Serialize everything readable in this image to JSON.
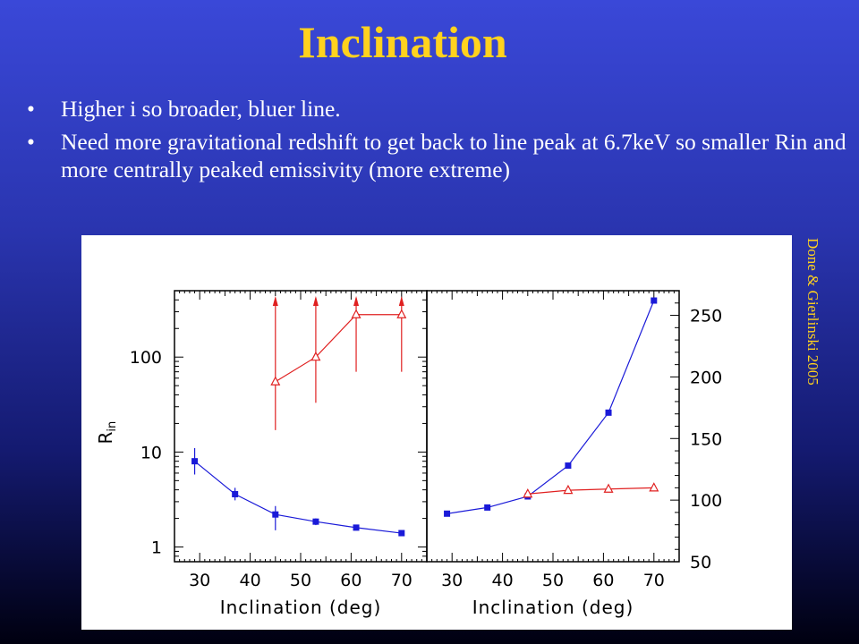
{
  "slide": {
    "title": "Inclination",
    "bullets": [
      "Higher i so broader, bluer line.",
      "Need more gravitational redshift to get back to line peak at 6.7keV so smaller Rin and more centrally peaked emissivity (more extreme)"
    ],
    "credit": "Done & Gierlinski 2005"
  },
  "chart_data": [
    {
      "type": "scatter",
      "panel": "left",
      "xlabel": "Inclination (deg)",
      "ylabel": "R",
      "ylabel_sub": "in",
      "yscale": "log",
      "xlim": [
        25,
        75
      ],
      "ylim": [
        0.7,
        500
      ],
      "x_ticks": [
        30,
        40,
        50,
        60,
        70
      ],
      "y_ticks": [
        {
          "value": 1,
          "label": "1"
        },
        {
          "value": 10,
          "label": "10"
        },
        {
          "value": 100,
          "label": "100"
        }
      ],
      "series": [
        {
          "color": "#1a1ad8",
          "marker": "square",
          "x": [
            29,
            37,
            45,
            53,
            61,
            70
          ],
          "y": [
            8,
            3.6,
            2.2,
            1.85,
            1.6,
            1.4
          ],
          "err_low": [
            5.8,
            3.1,
            1.5,
            1.7,
            1.6,
            1.4
          ],
          "err_high": [
            11,
            4.2,
            2.7,
            2.0,
            1.6,
            1.4
          ]
        },
        {
          "color": "#e02020",
          "marker": "triangle",
          "x": [
            45,
            53,
            61,
            70
          ],
          "y": [
            55,
            100,
            280,
            280
          ],
          "err_low": [
            17,
            33,
            70,
            70
          ],
          "arrow_up": [
            true,
            true,
            true,
            true
          ]
        }
      ]
    },
    {
      "type": "scatter",
      "panel": "right",
      "xlabel": "Inclination (deg)",
      "yscale": "linear",
      "yaxis_side": "right",
      "xlim": [
        25,
        75
      ],
      "ylim": [
        50,
        270
      ],
      "x_ticks": [
        30,
        40,
        50,
        60,
        70
      ],
      "y_ticks": [
        {
          "value": 50,
          "label": "50"
        },
        {
          "value": 100,
          "label": "100"
        },
        {
          "value": 150,
          "label": "150"
        },
        {
          "value": 200,
          "label": "200"
        },
        {
          "value": 250,
          "label": "250"
        }
      ],
      "series": [
        {
          "color": "#1a1ad8",
          "marker": "square",
          "x": [
            29,
            37,
            45,
            53,
            61,
            70
          ],
          "y": [
            89,
            94,
            103,
            128,
            171,
            262
          ]
        },
        {
          "color": "#e02020",
          "marker": "triangle",
          "x": [
            45,
            53,
            61,
            70
          ],
          "y": [
            105,
            108,
            109,
            110
          ]
        }
      ]
    }
  ]
}
